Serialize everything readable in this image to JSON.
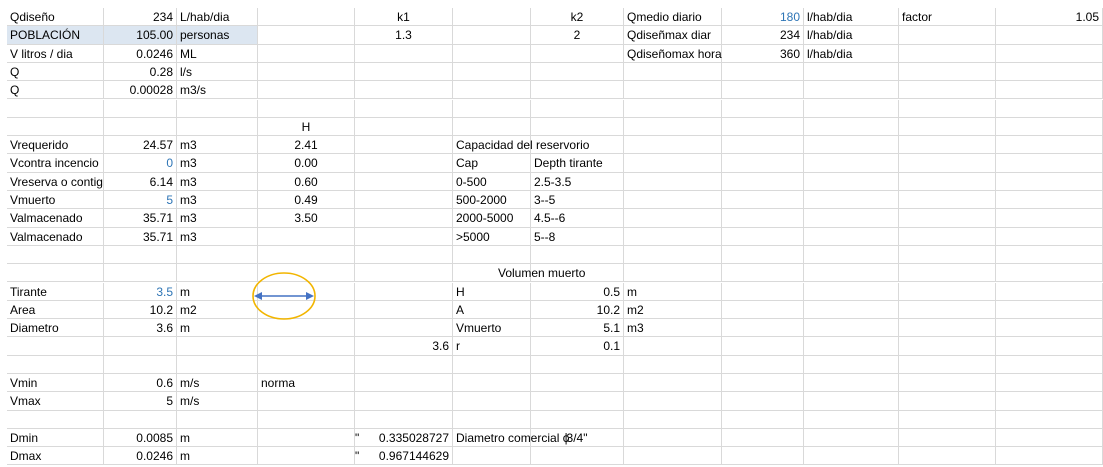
{
  "cells": {
    "r1": {
      "a": "Qdiseño",
      "b": "234",
      "c": "L/hab/dia",
      "e": "k1",
      "g": "k2",
      "i": "Qmedio diario",
      "j": "180",
      "k": "l/hab/dia",
      "l": "factor",
      "n": "1.05"
    },
    "r2": {
      "a": "POBLACIÓN",
      "b": "105.00",
      "c": "personas",
      "e": "1.3",
      "g": "2",
      "i": "Qdiseñmax diar",
      "j": "234",
      "k": "l/hab/dia"
    },
    "r3": {
      "a": "V litros / dia",
      "b": "0.0246",
      "c": "ML",
      "i": "Qdiseñomax hora",
      "j": "360",
      "k": "l/hab/dia"
    },
    "r4": {
      "a": "Q",
      "b": "0.28",
      "c": "l/s"
    },
    "r5": {
      "a": "Q",
      "b": "0.00028",
      "c": "m3/s"
    },
    "r7": {
      "d": "H"
    },
    "r8": {
      "a": "Vrequerido",
      "b": "24.57",
      "c": "m3",
      "d": "2.41",
      "f": "Capacidad del reservorio"
    },
    "r9": {
      "a": "Vcontra incencio",
      "b": "0",
      "c": "m3",
      "d": "0.00",
      "f": "Cap",
      "g": "Depth tirante"
    },
    "r10": {
      "a": "Vreserva o contig",
      "b": "6.14",
      "c": "m3",
      "d": "0.60",
      "f": "0-500",
      "g": "2.5-3.5"
    },
    "r11": {
      "a": "Vmuerto",
      "b": "5",
      "c": "m3",
      "d": "0.49",
      "f": "500-2000",
      "g": "3--5"
    },
    "r12": {
      "a": "Valmacenado",
      "b": "35.71",
      "c": "m3",
      "d": "3.50",
      "f": "2000-5000",
      "g": "4.5--6"
    },
    "r13": {
      "a": "Valmacenado",
      "b": "35.71",
      "c": "m3",
      "f": ">5000",
      "g": "5--8"
    },
    "r15": {
      "f": "Volumen muerto"
    },
    "r16": {
      "a": "Tirante",
      "b": "3.5",
      "c": "m",
      "f": "H",
      "g": "0.5",
      "h": "m"
    },
    "r17": {
      "a": "Area",
      "b": "10.2",
      "c": "m2",
      "f": "A",
      "g": "10.2",
      "h": "m2"
    },
    "r18": {
      "a": "Diametro",
      "b": "3.6",
      "c": "m",
      "f": "Vmuerto",
      "g": "5.1",
      "h": "m3"
    },
    "r19": {
      "e": "3.6",
      "f": "r",
      "g": "0.1"
    },
    "r21": {
      "a": "Vmin",
      "b": "0.6",
      "c": "m/s",
      "d": "norma"
    },
    "r22": {
      "a": "Vmax",
      "b": "5",
      "c": "m/s"
    },
    "r24": {
      "a": "Dmin",
      "b": "0.0085",
      "c": "m",
      "e": "0.335028727",
      "f_quote": "\"",
      "f": "Diametro comercial ϕ",
      "g": "3/4\""
    },
    "r25": {
      "a": "Dmax",
      "b": "0.0246",
      "c": "m",
      "e": "0.967144629",
      "f_quote": "\""
    }
  },
  "colors": {
    "grid": "#d9d9d9",
    "blue_value": "#2e75b6",
    "selected_fill": "#dce6f1",
    "ellipse_stroke": "#f2b500",
    "arrow": "#4472c4"
  },
  "shape": {
    "name": "diameter-ellipse-with-arrow"
  }
}
